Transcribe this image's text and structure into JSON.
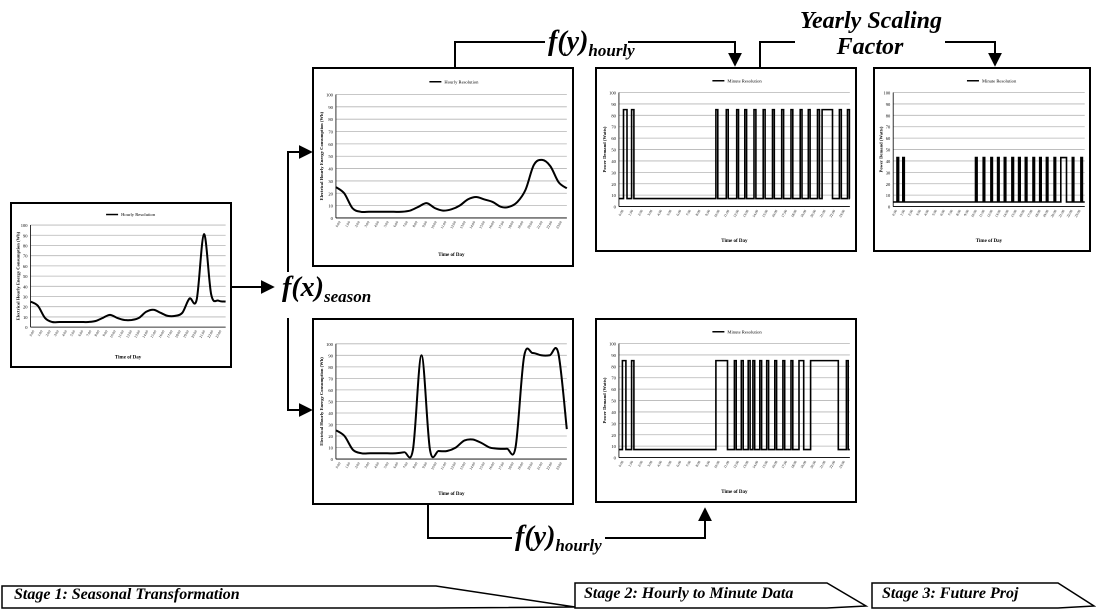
{
  "functions": {
    "season": {
      "base": "f(x)",
      "sub": "season"
    },
    "hourly_top": {
      "base": "f(y)",
      "sub": "hourly"
    },
    "hourly_bottom": {
      "base": "f(y)",
      "sub": "hourly"
    },
    "yearly_line1": "Yearly Scaling",
    "yearly_line2": "Factor"
  },
  "stages": [
    {
      "label": "Stage 1: Seasonal Transformation"
    },
    {
      "label": "Stage 2: Hourly to Minute Data"
    },
    {
      "label": "Stage 3: Future Proj"
    }
  ],
  "chart_data": [
    {
      "id": "input",
      "type": "line",
      "title": "Hourly Resolution",
      "xlabel": "Time of Day",
      "ylabel": "Electrical Hourly Energy Consumption (Wh)",
      "ylim": [
        0,
        100
      ],
      "yticks": [
        0,
        10,
        20,
        30,
        40,
        50,
        60,
        70,
        80,
        90,
        100
      ],
      "series": [
        {
          "values": [
            25,
            21,
            9,
            5,
            5,
            5,
            5,
            5,
            5,
            6,
            9,
            12,
            9,
            7,
            7,
            9,
            15,
            17,
            14,
            11,
            11,
            14,
            28,
            27,
            91,
            32,
            26,
            25
          ]
        }
      ]
    },
    {
      "id": "season_a",
      "type": "line",
      "title": "Hourly Resolution",
      "xlabel": "Time of Day",
      "ylabel": "Electrical Hourly Energy Consumption (Wh)",
      "ylim": [
        0,
        100
      ],
      "yticks": [
        0,
        10,
        20,
        30,
        40,
        50,
        60,
        70,
        80,
        90,
        100
      ],
      "series": [
        {
          "values": [
            25,
            20,
            8,
            5,
            5,
            5,
            5,
            5,
            5,
            6,
            9,
            12,
            8,
            6,
            7,
            10,
            15,
            17,
            15,
            13,
            9,
            9,
            13,
            23,
            43,
            47,
            42,
            29,
            24
          ]
        }
      ]
    },
    {
      "id": "season_b",
      "type": "line",
      "title": "",
      "xlabel": "Time of Day",
      "ylabel": "Electrical Hourly Energy Consumption (Wh)",
      "ylim": [
        0,
        100
      ],
      "yticks": [
        0,
        10,
        20,
        30,
        40,
        50,
        60,
        70,
        80,
        90,
        100
      ],
      "series": [
        {
          "values": [
            25,
            20,
            8,
            5,
            5,
            5,
            5,
            5,
            6,
            8,
            90,
            8,
            7,
            7,
            10,
            16,
            17,
            14,
            10,
            9,
            9,
            10,
            89,
            92,
            90,
            90,
            92,
            26
          ]
        }
      ]
    },
    {
      "id": "minute_a",
      "type": "line",
      "title": "Minute Resolution",
      "xlabel": "Time of Day",
      "ylabel": "Power Demand (Watts)",
      "ylim": [
        0,
        100
      ],
      "yticks": [
        0,
        10,
        20,
        30,
        40,
        50,
        60,
        70,
        80,
        90,
        100
      ],
      "base": 7,
      "peak": 85,
      "pulses": [
        [
          0.02,
          0.035
        ],
        [
          0.055,
          0.065
        ],
        [
          0.42,
          0.428
        ],
        [
          0.465,
          0.473
        ],
        [
          0.51,
          0.518
        ],
        [
          0.545,
          0.553
        ],
        [
          0.585,
          0.593
        ],
        [
          0.625,
          0.633
        ],
        [
          0.665,
          0.673
        ],
        [
          0.705,
          0.713
        ],
        [
          0.745,
          0.753
        ],
        [
          0.785,
          0.793
        ],
        [
          0.82,
          0.828
        ],
        [
          0.86,
          0.868
        ],
        [
          0.88,
          0.925
        ],
        [
          0.955,
          0.963
        ],
        [
          0.99,
          0.998
        ]
      ]
    },
    {
      "id": "minute_b",
      "type": "line",
      "title": "Minute Resolution",
      "xlabel": "Time of Day",
      "ylabel": "Power Demand (Watts)",
      "ylim": [
        0,
        100
      ],
      "yticks": [
        0,
        10,
        20,
        30,
        40,
        50,
        60,
        70,
        80,
        90,
        100
      ],
      "base": 7,
      "peak": 85,
      "pulses": [
        [
          0.015,
          0.03
        ],
        [
          0.055,
          0.065
        ],
        [
          0.42,
          0.47
        ],
        [
          0.5,
          0.508
        ],
        [
          0.53,
          0.538
        ],
        [
          0.56,
          0.568
        ],
        [
          0.58,
          0.588
        ],
        [
          0.61,
          0.618
        ],
        [
          0.64,
          0.648
        ],
        [
          0.675,
          0.683
        ],
        [
          0.71,
          0.718
        ],
        [
          0.745,
          0.753
        ],
        [
          0.78,
          0.8
        ],
        [
          0.83,
          0.95
        ],
        [
          0.985,
          0.993
        ]
      ]
    },
    {
      "id": "future",
      "type": "line",
      "title": "Minute Resolution",
      "xlabel": "Time of Day",
      "ylabel": "Power Demand (Watts)",
      "ylim": [
        0,
        100
      ],
      "yticks": [
        0,
        10,
        20,
        30,
        40,
        50,
        60,
        70,
        80,
        90,
        100
      ],
      "base": 4,
      "peak": 43,
      "pulses": [
        [
          0.02,
          0.028
        ],
        [
          0.05,
          0.058
        ],
        [
          0.43,
          0.438
        ],
        [
          0.47,
          0.478
        ],
        [
          0.51,
          0.518
        ],
        [
          0.545,
          0.553
        ],
        [
          0.58,
          0.588
        ],
        [
          0.62,
          0.628
        ],
        [
          0.655,
          0.663
        ],
        [
          0.69,
          0.698
        ],
        [
          0.73,
          0.738
        ],
        [
          0.765,
          0.773
        ],
        [
          0.8,
          0.808
        ],
        [
          0.84,
          0.848
        ],
        [
          0.875,
          0.905
        ],
        [
          0.935,
          0.943
        ],
        [
          0.98,
          0.988
        ]
      ]
    }
  ]
}
